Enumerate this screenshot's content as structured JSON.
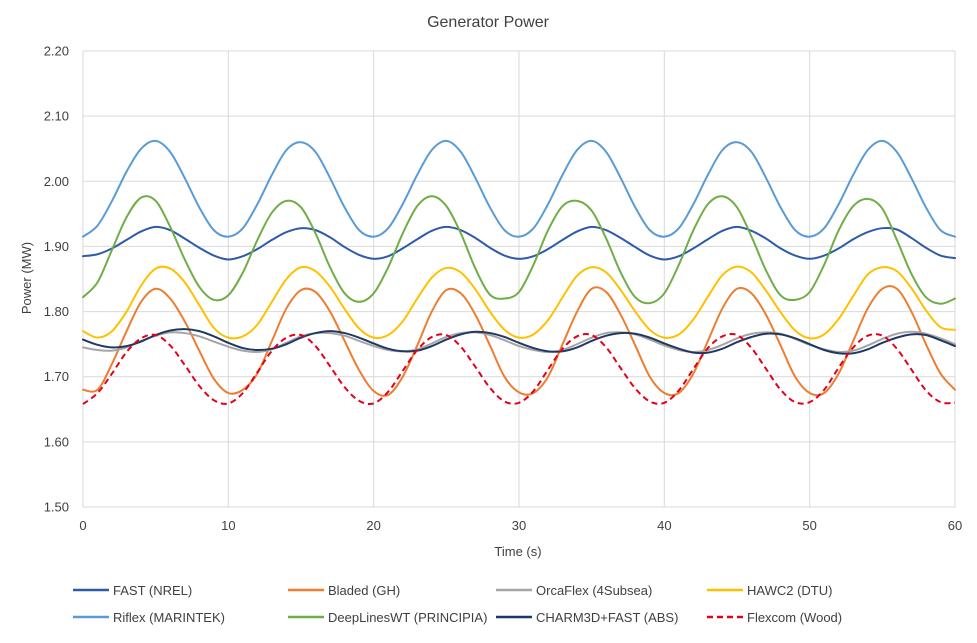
{
  "chart_data": {
    "type": "line",
    "title": "Generator Power",
    "xlabel": "Time (s)",
    "ylabel": "Power (MW)",
    "xlim": [
      0,
      60
    ],
    "ylim": [
      1.5,
      2.2
    ],
    "x_ticks": [
      "0",
      "10",
      "20",
      "30",
      "40",
      "50",
      "60"
    ],
    "y_ticks": [
      "1.50",
      "1.60",
      "1.70",
      "1.80",
      "1.90",
      "2.00",
      "2.10",
      "2.20"
    ],
    "grid": true,
    "legend_position": "bottom",
    "x": [
      0,
      1,
      2,
      3,
      4,
      5,
      6,
      7,
      8,
      9,
      10,
      11,
      12,
      13,
      14,
      15,
      16,
      17,
      18,
      19,
      20,
      21,
      22,
      23,
      24,
      25,
      26,
      27,
      28,
      29,
      30,
      31,
      32,
      33,
      34,
      35,
      36,
      37,
      38,
      39,
      40,
      41,
      42,
      43,
      44,
      45,
      46,
      47,
      48,
      49,
      50,
      51,
      52,
      53,
      54,
      55,
      56,
      57,
      58,
      59,
      60
    ],
    "series": [
      {
        "name": "FAST (NREL)",
        "color": "#2E5AA8",
        "dash": false,
        "values": [
          1.885,
          1.888,
          1.897,
          1.91,
          1.923,
          1.93,
          1.925,
          1.912,
          1.898,
          1.886,
          1.88,
          1.885,
          1.896,
          1.91,
          1.922,
          1.928,
          1.925,
          1.914,
          1.899,
          1.887,
          1.881,
          1.885,
          1.897,
          1.911,
          1.924,
          1.93,
          1.925,
          1.913,
          1.898,
          1.886,
          1.881,
          1.885,
          1.896,
          1.91,
          1.923,
          1.93,
          1.925,
          1.913,
          1.899,
          1.886,
          1.88,
          1.885,
          1.897,
          1.911,
          1.924,
          1.93,
          1.924,
          1.912,
          1.897,
          1.886,
          1.881,
          1.886,
          1.897,
          1.911,
          1.922,
          1.928,
          1.926,
          1.913,
          1.898,
          1.886,
          1.882
        ]
      },
      {
        "name": "Bladed (GH)",
        "color": "#ED7D31",
        "dash": false,
        "values": [
          1.68,
          1.68,
          1.72,
          1.77,
          1.815,
          1.835,
          1.82,
          1.785,
          1.74,
          1.697,
          1.675,
          1.68,
          1.705,
          1.755,
          1.805,
          1.833,
          1.83,
          1.8,
          1.755,
          1.71,
          1.678,
          1.672,
          1.7,
          1.748,
          1.8,
          1.833,
          1.828,
          1.795,
          1.748,
          1.7,
          1.676,
          1.675,
          1.7,
          1.75,
          1.8,
          1.835,
          1.83,
          1.795,
          1.748,
          1.7,
          1.675,
          1.675,
          1.705,
          1.755,
          1.805,
          1.835,
          1.828,
          1.795,
          1.748,
          1.7,
          1.675,
          1.675,
          1.705,
          1.755,
          1.805,
          1.835,
          1.835,
          1.8,
          1.75,
          1.705,
          1.68
        ]
      },
      {
        "name": "OrcaFlex (4Subsea)",
        "color": "#A5A5A5",
        "dash": false,
        "values": [
          1.745,
          1.741,
          1.74,
          1.745,
          1.755,
          1.763,
          1.768,
          1.767,
          1.762,
          1.754,
          1.746,
          1.74,
          1.738,
          1.742,
          1.752,
          1.762,
          1.767,
          1.767,
          1.763,
          1.755,
          1.747,
          1.741,
          1.739,
          1.742,
          1.751,
          1.761,
          1.767,
          1.768,
          1.764,
          1.756,
          1.747,
          1.741,
          1.738,
          1.741,
          1.75,
          1.76,
          1.767,
          1.768,
          1.765,
          1.757,
          1.748,
          1.741,
          1.738,
          1.741,
          1.749,
          1.759,
          1.766,
          1.768,
          1.766,
          1.758,
          1.749,
          1.742,
          1.738,
          1.74,
          1.748,
          1.758,
          1.766,
          1.769,
          1.766,
          1.759,
          1.75
        ]
      },
      {
        "name": "HAWC2 (DTU)",
        "color": "#FFC000",
        "dash": false,
        "values": [
          1.77,
          1.76,
          1.77,
          1.8,
          1.84,
          1.866,
          1.866,
          1.845,
          1.81,
          1.775,
          1.76,
          1.762,
          1.78,
          1.815,
          1.85,
          1.868,
          1.862,
          1.838,
          1.804,
          1.774,
          1.76,
          1.764,
          1.785,
          1.82,
          1.852,
          1.867,
          1.86,
          1.834,
          1.8,
          1.772,
          1.76,
          1.765,
          1.787,
          1.822,
          1.855,
          1.868,
          1.86,
          1.833,
          1.8,
          1.772,
          1.76,
          1.765,
          1.788,
          1.823,
          1.856,
          1.869,
          1.86,
          1.832,
          1.799,
          1.771,
          1.759,
          1.765,
          1.789,
          1.824,
          1.857,
          1.868,
          1.862,
          1.836,
          1.802,
          1.776,
          1.772
        ]
      },
      {
        "name": "Riflex (MARINTEK)",
        "color": "#5B9BD5",
        "dash": false,
        "values": [
          1.915,
          1.932,
          1.97,
          2.015,
          2.05,
          2.062,
          2.045,
          2.005,
          1.96,
          1.925,
          1.915,
          1.928,
          1.965,
          2.01,
          2.048,
          2.06,
          2.045,
          2.005,
          1.96,
          1.925,
          1.915,
          1.928,
          1.965,
          2.01,
          2.048,
          2.062,
          2.045,
          2.005,
          1.96,
          1.925,
          1.915,
          1.928,
          1.965,
          2.01,
          2.048,
          2.062,
          2.045,
          2.005,
          1.96,
          1.925,
          1.915,
          1.928,
          1.965,
          2.01,
          2.048,
          2.06,
          2.045,
          2.005,
          1.96,
          1.925,
          1.915,
          1.928,
          1.965,
          2.01,
          2.048,
          2.062,
          2.045,
          2.005,
          1.96,
          1.925,
          1.915
        ]
      },
      {
        "name": "DeepLinesWT (PRINCIPIA)",
        "color": "#70AD47",
        "dash": false,
        "values": [
          1.822,
          1.845,
          1.895,
          1.945,
          1.975,
          1.97,
          1.93,
          1.88,
          1.838,
          1.818,
          1.825,
          1.86,
          1.91,
          1.952,
          1.97,
          1.96,
          1.92,
          1.868,
          1.828,
          1.815,
          1.828,
          1.868,
          1.92,
          1.962,
          1.977,
          1.962,
          1.92,
          1.866,
          1.826,
          1.82,
          1.83,
          1.872,
          1.925,
          1.962,
          1.97,
          1.955,
          1.912,
          1.86,
          1.822,
          1.813,
          1.828,
          1.872,
          1.925,
          1.965,
          1.977,
          1.96,
          1.915,
          1.863,
          1.825,
          1.818,
          1.83,
          1.872,
          1.925,
          1.962,
          1.973,
          1.958,
          1.91,
          1.858,
          1.822,
          1.812,
          1.82
        ]
      },
      {
        "name": "CHARM3D+FAST (ABS)",
        "color": "#203864",
        "dash": false,
        "values": [
          1.757,
          1.749,
          1.745,
          1.747,
          1.754,
          1.764,
          1.771,
          1.773,
          1.77,
          1.762,
          1.752,
          1.744,
          1.741,
          1.743,
          1.75,
          1.76,
          1.767,
          1.77,
          1.767,
          1.76,
          1.751,
          1.743,
          1.739,
          1.74,
          1.747,
          1.757,
          1.765,
          1.769,
          1.767,
          1.761,
          1.752,
          1.744,
          1.739,
          1.739,
          1.745,
          1.755,
          1.763,
          1.767,
          1.766,
          1.76,
          1.751,
          1.743,
          1.737,
          1.737,
          1.743,
          1.753,
          1.761,
          1.766,
          1.765,
          1.759,
          1.75,
          1.741,
          1.736,
          1.736,
          1.742,
          1.752,
          1.76,
          1.765,
          1.764,
          1.756,
          1.747
        ]
      },
      {
        "name": "Flexcom (Wood)",
        "color": "#E3001B",
        "dash": true,
        "values": [
          1.658,
          1.675,
          1.705,
          1.738,
          1.759,
          1.764,
          1.748,
          1.718,
          1.686,
          1.664,
          1.659,
          1.675,
          1.707,
          1.74,
          1.76,
          1.764,
          1.747,
          1.716,
          1.684,
          1.663,
          1.659,
          1.677,
          1.709,
          1.741,
          1.761,
          1.764,
          1.746,
          1.715,
          1.683,
          1.662,
          1.66,
          1.678,
          1.711,
          1.743,
          1.762,
          1.764,
          1.745,
          1.713,
          1.682,
          1.662,
          1.66,
          1.679,
          1.712,
          1.744,
          1.762,
          1.764,
          1.744,
          1.712,
          1.68,
          1.661,
          1.661,
          1.68,
          1.714,
          1.745,
          1.763,
          1.763,
          1.743,
          1.711,
          1.679,
          1.661,
          1.66
        ]
      }
    ]
  }
}
